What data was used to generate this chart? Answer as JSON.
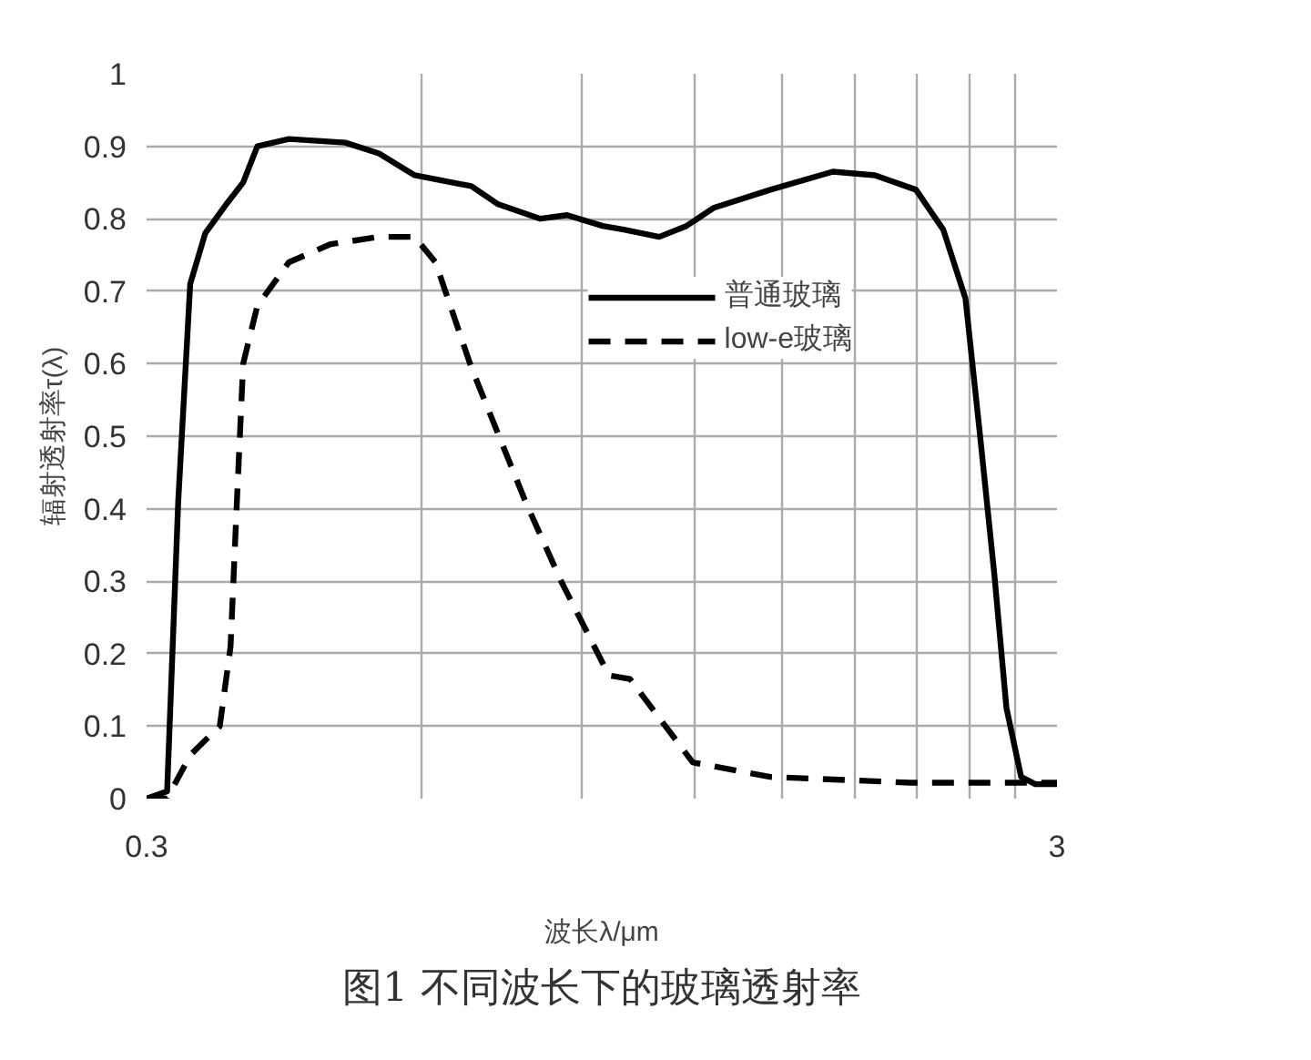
{
  "chart_data": {
    "type": "line",
    "title": "图1 不同波长下的玻璃透射率",
    "xlabel": "波长λ/μm",
    "ylabel": "辐射透射率τ(λ)",
    "log": "x",
    "xlim": [
      0.3,
      3
    ],
    "ylim": [
      0,
      1
    ],
    "xticks": [
      0.3,
      {
        "value": 0.6,
        "label": null
      },
      {
        "value": 0.9,
        "label": null
      },
      {
        "value": 1.2,
        "label": null
      },
      {
        "value": 1.5,
        "label": null
      },
      {
        "value": 1.8,
        "label": null
      },
      {
        "value": 2.1,
        "label": null
      },
      {
        "value": 2.4,
        "label": null
      },
      {
        "value": 2.7,
        "label": null
      },
      3
    ],
    "yticks": [
      0,
      0.1,
      0.2,
      0.3,
      0.4,
      0.5,
      0.6,
      0.7,
      0.8,
      0.9,
      1
    ],
    "grid": true,
    "legend": "top right",
    "series": [
      {
        "name": "普通玻璃",
        "color": "#000000",
        "line_style": "solid",
        "x": [
          0.3,
          0.316,
          0.318,
          0.325,
          0.335,
          0.348,
          0.367,
          0.383,
          0.397,
          0.43,
          0.496,
          0.54,
          0.591,
          0.682,
          0.73,
          0.812,
          0.869,
          0.951,
          1.003,
          1.097,
          1.175,
          1.259,
          1.453,
          1.702,
          1.893,
          2.1,
          2.25,
          2.38,
          2.47,
          2.56,
          2.64,
          2.74,
          2.84,
          3.0
        ],
        "values": [
          0,
          0.01,
          0.1,
          0.41,
          0.71,
          0.78,
          0.82,
          0.85,
          0.9,
          0.91,
          0.905,
          0.89,
          0.86,
          0.845,
          0.82,
          0.8,
          0.805,
          0.79,
          0.785,
          0.775,
          0.79,
          0.815,
          0.84,
          0.865,
          0.86,
          0.84,
          0.785,
          0.69,
          0.5,
          0.31,
          0.125,
          0.03,
          0.02,
          0.02
        ]
      },
      {
        "name": "low-e玻璃",
        "color": "#000000",
        "line_style": "dashed",
        "x": [
          0.3,
          0.316,
          0.335,
          0.361,
          0.371,
          0.377,
          0.383,
          0.397,
          0.43,
          0.478,
          0.54,
          0.591,
          0.623,
          0.682,
          0.782,
          0.856,
          0.966,
          1.019,
          1.194,
          1.453,
          2.07,
          2.74,
          3.0
        ],
        "values": [
          0,
          0.0,
          0.06,
          0.1,
          0.21,
          0.41,
          0.6,
          0.68,
          0.74,
          0.765,
          0.775,
          0.775,
          0.74,
          0.595,
          0.41,
          0.3,
          0.17,
          0.165,
          0.05,
          0.03,
          0.022,
          0.022,
          0.022
        ]
      }
    ]
  }
}
